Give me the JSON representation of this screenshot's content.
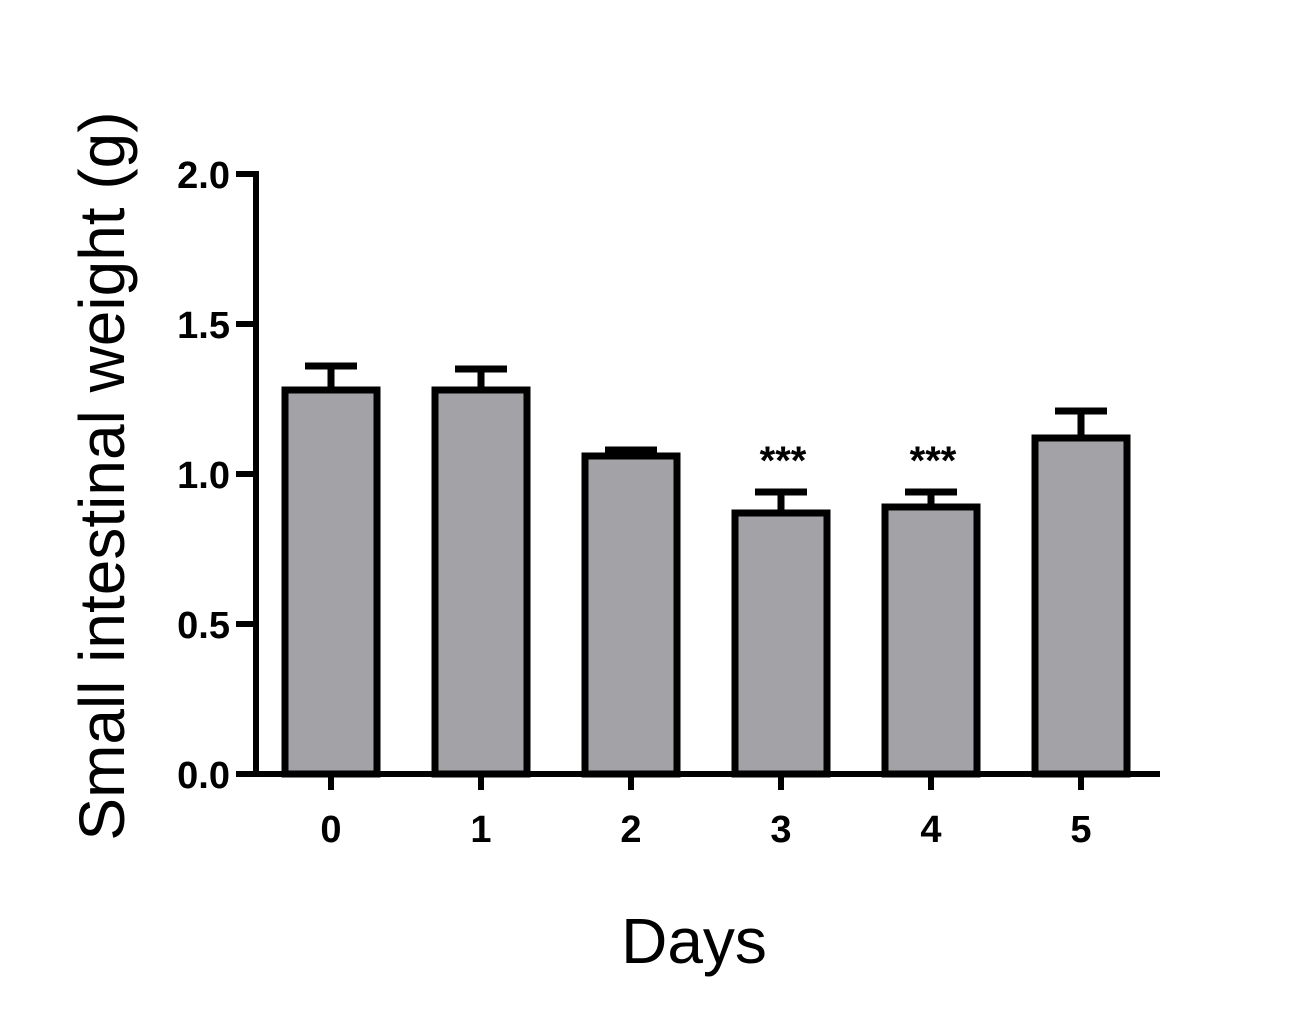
{
  "chart_data": {
    "type": "bar",
    "categories": [
      "0",
      "1",
      "2",
      "3",
      "4",
      "5"
    ],
    "values": [
      1.28,
      1.28,
      1.06,
      0.87,
      0.89,
      1.12
    ],
    "errors": [
      0.08,
      0.07,
      0.02,
      0.07,
      0.05,
      0.09
    ],
    "annotations": [
      "",
      "",
      "",
      "***",
      "***",
      ""
    ],
    "xlabel": "Days",
    "ylabel": "Small intestinal weight (g)",
    "ylim": [
      0,
      2.0
    ],
    "yticks": [
      "0.0",
      "0.5",
      "1.0",
      "1.5",
      "2.0"
    ],
    "bar_color": "#a3a2a7",
    "edge_color": "#000000",
    "grid": false,
    "legend": "none"
  }
}
